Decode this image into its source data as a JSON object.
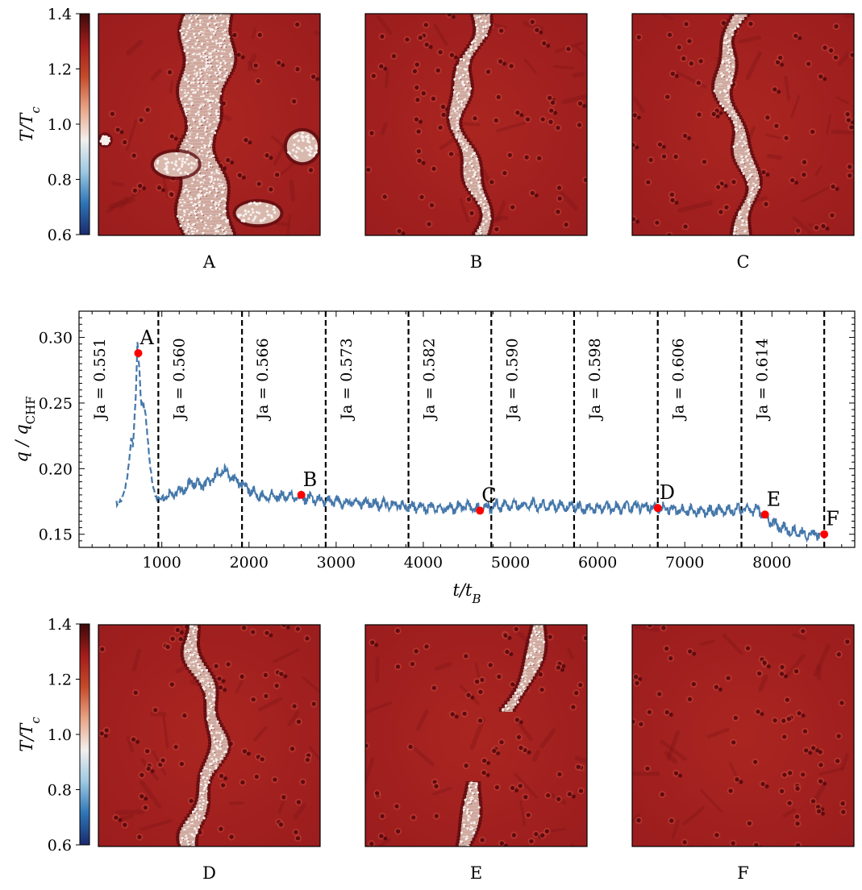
{
  "colorbar": {
    "label": "T/T_c",
    "ticks": [
      "1.4",
      "1.2",
      "1.0",
      "0.8",
      "0.6"
    ],
    "tick_values": [
      1.4,
      1.2,
      1.0,
      0.8,
      0.6
    ],
    "range": [
      0.6,
      1.4
    ],
    "colors": [
      "#1a2a6c",
      "#2e75b6",
      "#9ec9e2",
      "#f2efee",
      "#e8a487",
      "#c44b2a",
      "#a51c1c",
      "#3b0a0a"
    ]
  },
  "top_panels": [
    {
      "label": "A",
      "front": "wide"
    },
    {
      "label": "B",
      "front": "narrow"
    },
    {
      "label": "C",
      "front": "narrow"
    }
  ],
  "bottom_panels": [
    {
      "label": "D",
      "front": "narrow"
    },
    {
      "label": "E",
      "front": "broken"
    },
    {
      "label": "F",
      "front": "none"
    }
  ],
  "field_colors": {
    "background": "#a3201f",
    "bubble_ring": "#5c0b0f",
    "vapor": "#ece3df"
  },
  "chart_data": {
    "type": "line",
    "xlabel": "t/t_B",
    "ylabel": "q / q_CHF",
    "xlim": [
      50,
      8950
    ],
    "ylim": [
      0.14,
      0.32
    ],
    "xticks": [
      1000,
      2000,
      3000,
      4000,
      5000,
      6000,
      7000,
      8000
    ],
    "xtick_labels": [
      "1000",
      "2000",
      "3000",
      "4000",
      "5000",
      "6000",
      "7000",
      "8000"
    ],
    "yticks": [
      0.15,
      0.2,
      0.25,
      0.3
    ],
    "ytick_labels": [
      "0.15",
      "0.20",
      "0.25",
      "0.30"
    ],
    "line_color": "#4477aa",
    "marker_color": "#ff0000",
    "dashed_segment_end": 950,
    "trace_knots": [
      [
        480,
        0.174
      ],
      [
        540,
        0.176
      ],
      [
        580,
        0.183
      ],
      [
        620,
        0.205
      ],
      [
        650,
        0.222
      ],
      [
        670,
        0.215
      ],
      [
        700,
        0.255
      ],
      [
        720,
        0.298
      ],
      [
        745,
        0.272
      ],
      [
        765,
        0.245
      ],
      [
        790,
        0.247
      ],
      [
        815,
        0.242
      ],
      [
        840,
        0.222
      ],
      [
        870,
        0.198
      ],
      [
        900,
        0.184
      ],
      [
        940,
        0.18
      ],
      [
        980,
        0.176
      ],
      [
        1050,
        0.178
      ],
      [
        1150,
        0.181
      ],
      [
        1250,
        0.184
      ],
      [
        1350,
        0.19
      ],
      [
        1450,
        0.187
      ],
      [
        1550,
        0.19
      ],
      [
        1650,
        0.196
      ],
      [
        1720,
        0.199
      ],
      [
        1800,
        0.193
      ],
      [
        1880,
        0.19
      ],
      [
        1950,
        0.186
      ],
      [
        2100,
        0.18
      ],
      [
        2300,
        0.179
      ],
      [
        2500,
        0.178
      ],
      [
        2700,
        0.177
      ],
      [
        2900,
        0.175
      ],
      [
        3100,
        0.174
      ],
      [
        3300,
        0.174
      ],
      [
        3500,
        0.173
      ],
      [
        3700,
        0.172
      ],
      [
        3900,
        0.171
      ],
      [
        4100,
        0.17
      ],
      [
        4300,
        0.17
      ],
      [
        4500,
        0.171
      ],
      [
        4650,
        0.169
      ],
      [
        4800,
        0.172
      ],
      [
        5000,
        0.172
      ],
      [
        5300,
        0.172
      ],
      [
        5600,
        0.172
      ],
      [
        5800,
        0.17
      ],
      [
        6000,
        0.17
      ],
      [
        6200,
        0.17
      ],
      [
        6400,
        0.171
      ],
      [
        6600,
        0.171
      ],
      [
        6700,
        0.17
      ],
      [
        6900,
        0.169
      ],
      [
        7100,
        0.168
      ],
      [
        7300,
        0.168
      ],
      [
        7500,
        0.168
      ],
      [
        7700,
        0.169
      ],
      [
        7850,
        0.168
      ],
      [
        7950,
        0.162
      ],
      [
        8050,
        0.157
      ],
      [
        8150,
        0.154
      ],
      [
        8300,
        0.151
      ],
      [
        8450,
        0.15
      ],
      [
        8550,
        0.15
      ]
    ],
    "points": [
      {
        "label": "A",
        "x": 730,
        "y": 0.288
      },
      {
        "label": "B",
        "x": 2600,
        "y": 0.18
      },
      {
        "label": "C",
        "x": 4650,
        "y": 0.168
      },
      {
        "label": "D",
        "x": 6690,
        "y": 0.17
      },
      {
        "label": "E",
        "x": 7920,
        "y": 0.165
      },
      {
        "label": "F",
        "x": 8600,
        "y": 0.15
      }
    ],
    "regions": [
      {
        "ja": "Ja = 0.551",
        "x_start": 50,
        "x_end": 960
      },
      {
        "ja": "Ja = 0.560",
        "x_start": 960,
        "x_end": 1920
      },
      {
        "ja": "Ja = 0.566",
        "x_start": 1920,
        "x_end": 2880
      },
      {
        "ja": "Ja = 0.573",
        "x_start": 2880,
        "x_end": 3830
      },
      {
        "ja": "Ja = 0.582",
        "x_start": 3830,
        "x_end": 4780
      },
      {
        "ja": "Ja = 0.590",
        "x_start": 4780,
        "x_end": 5730
      },
      {
        "ja": "Ja = 0.598",
        "x_start": 5730,
        "x_end": 6690
      },
      {
        "ja": "Ja = 0.606",
        "x_start": 6690,
        "x_end": 7650
      },
      {
        "ja": "Ja = 0.614",
        "x_start": 7650,
        "x_end": 8600
      }
    ],
    "vlines": [
      960,
      1920,
      2880,
      3830,
      4780,
      5730,
      6690,
      7650,
      8600
    ]
  }
}
